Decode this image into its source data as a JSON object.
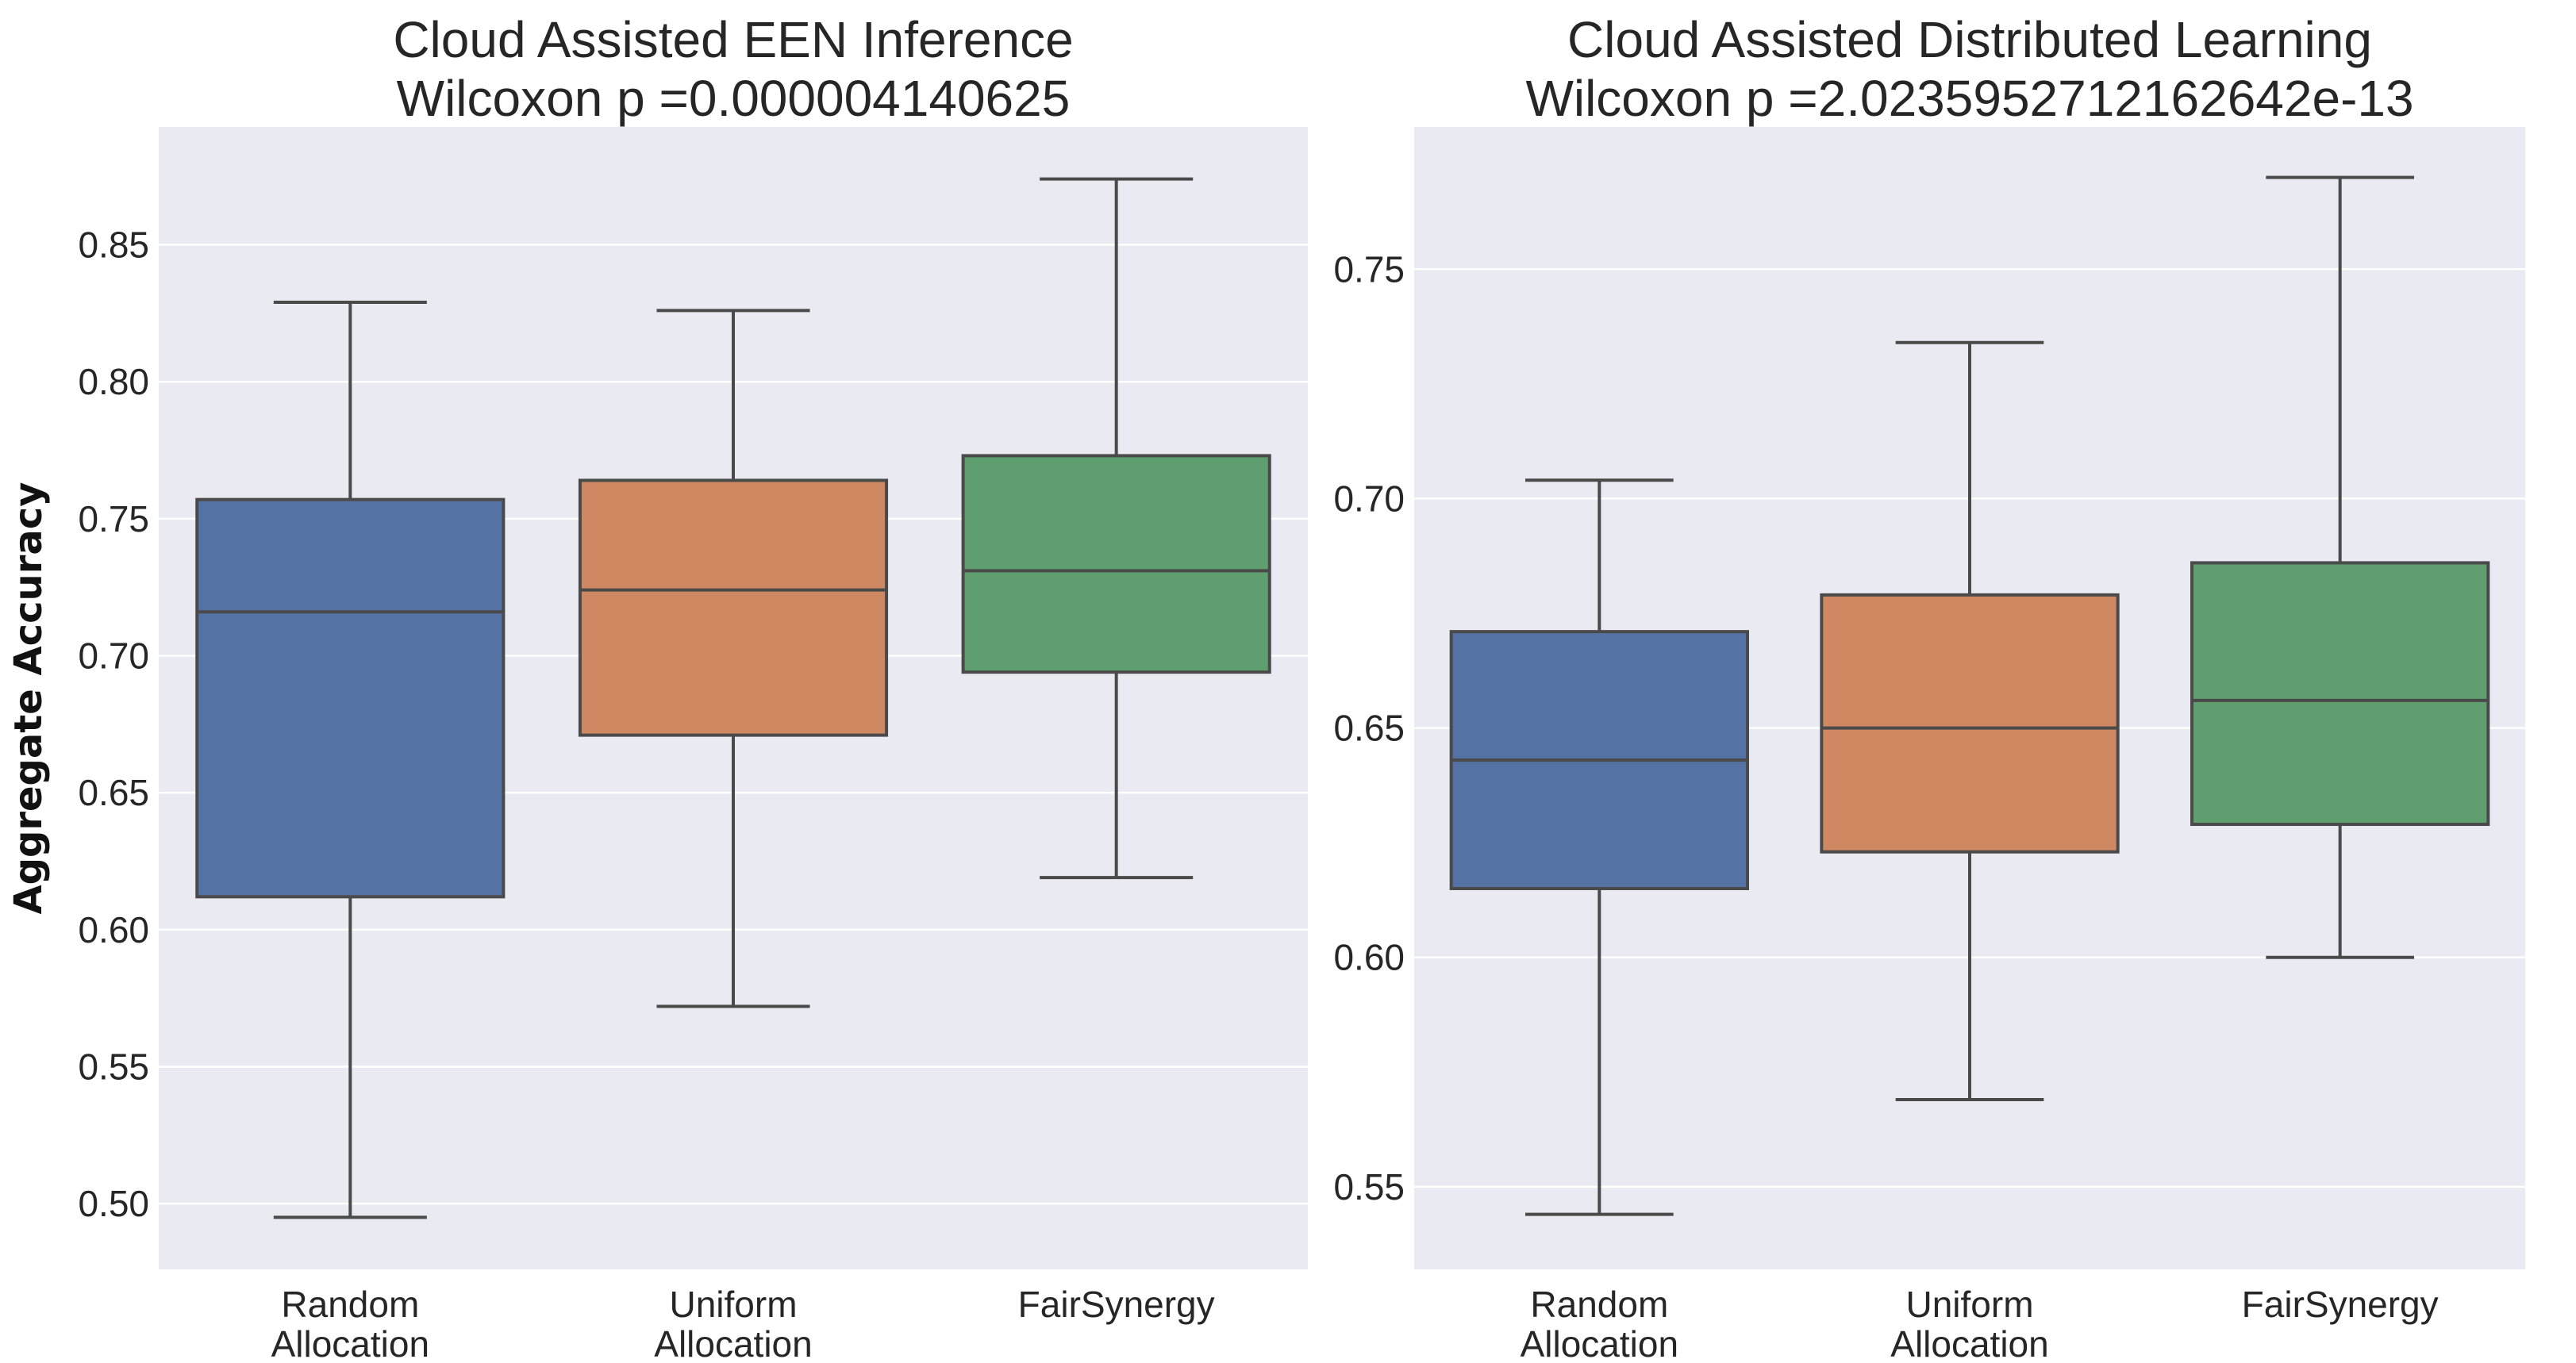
{
  "chart_data": [
    {
      "type": "box",
      "title_line1": "Cloud Assisted EEN Inference",
      "title_line2": "Wilcoxon p =0.000004140625",
      "xlabel": "",
      "ylabel": "Aggregate Accuracy",
      "ylim": [
        0.476,
        0.893
      ],
      "yticks": [
        "0.50",
        "0.55",
        "0.60",
        "0.65",
        "0.70",
        "0.75",
        "0.80",
        "0.85"
      ],
      "ytick_values": [
        0.5,
        0.55,
        0.6,
        0.65,
        0.7,
        0.75,
        0.8,
        0.85
      ],
      "categories": [
        [
          "Random",
          "Allocation"
        ],
        [
          "Uniform",
          "Allocation"
        ],
        [
          "FairSynergy"
        ]
      ],
      "colors": [
        "#5572a5",
        "#cf8962",
        "#5f9f6f"
      ],
      "boxes": [
        {
          "whisker_low": 0.495,
          "q1": 0.612,
          "median": 0.716,
          "q3": 0.757,
          "whisker_high": 0.829
        },
        {
          "whisker_low": 0.572,
          "q1": 0.671,
          "median": 0.724,
          "q3": 0.764,
          "whisker_high": 0.826
        },
        {
          "whisker_low": 0.619,
          "q1": 0.694,
          "median": 0.731,
          "q3": 0.773,
          "whisker_high": 0.874
        }
      ],
      "grid": true
    },
    {
      "type": "box",
      "title_line1": "Cloud Assisted Distributed Learning",
      "title_line2": "Wilcoxon p =2.0235952712162642e-13",
      "xlabel": "",
      "ylabel": "",
      "ylim": [
        0.532,
        0.781
      ],
      "yticks": [
        "0.55",
        "0.60",
        "0.65",
        "0.70",
        "0.75"
      ],
      "ytick_values": [
        0.55,
        0.6,
        0.65,
        0.7,
        0.75
      ],
      "categories": [
        [
          "Random",
          "Allocation"
        ],
        [
          "Uniform",
          "Allocation"
        ],
        [
          "FairSynergy"
        ]
      ],
      "colors": [
        "#5572a5",
        "#cf8962",
        "#5f9f6f"
      ],
      "boxes": [
        {
          "whisker_low": 0.544,
          "q1": 0.615,
          "median": 0.643,
          "q3": 0.671,
          "whisker_high": 0.704
        },
        {
          "whisker_low": 0.569,
          "q1": 0.623,
          "median": 0.65,
          "q3": 0.679,
          "whisker_high": 0.734
        },
        {
          "whisker_low": 0.6,
          "q1": 0.629,
          "median": 0.656,
          "q3": 0.686,
          "whisker_high": 0.77
        }
      ],
      "grid": true
    }
  ]
}
